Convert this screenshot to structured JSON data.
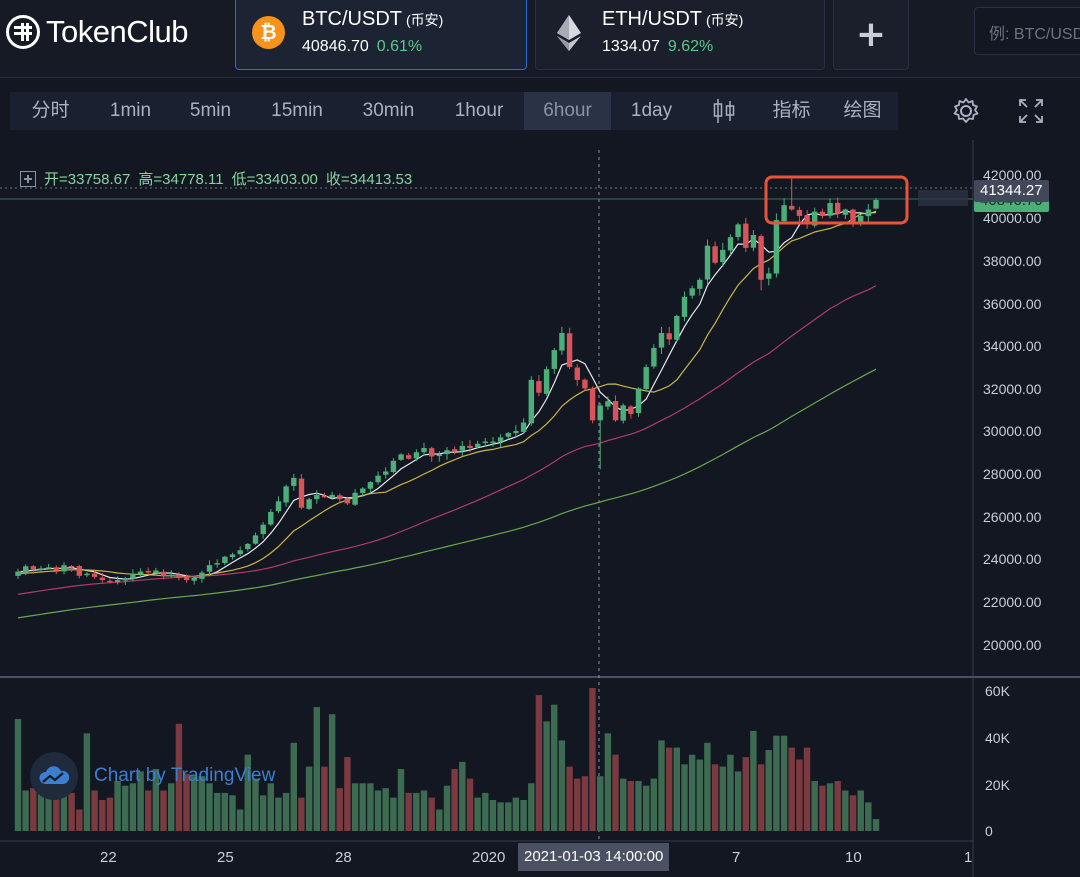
{
  "app": {
    "logo_text": "TokenClub"
  },
  "pairs": [
    {
      "symbol": "BTC/USDT",
      "exchange": "(币安)",
      "price": "40846.70",
      "change": "0.61%",
      "coin": "btc-icon",
      "active": true
    },
    {
      "symbol": "ETH/USDT",
      "exchange": "(币安)",
      "price": "1334.07",
      "change": "9.62%",
      "coin": "eth-icon",
      "active": false
    }
  ],
  "add_label": "+",
  "search": {
    "placeholder": "例: BTC/USDT"
  },
  "toolbar": {
    "timeframes": [
      "分时",
      "1min",
      "5min",
      "15min",
      "30min",
      "1hour",
      "6hour",
      "1day"
    ],
    "active_timeframe": "6hour",
    "indicators_label": "指标",
    "drawing_label": "绘图"
  },
  "ohlc": {
    "open_label": "开=",
    "open": "33758.67",
    "high_label": "高=",
    "high": "34778.11",
    "low_label": "低=",
    "low": "33403.00",
    "close_label": "收=",
    "close": "34413.53"
  },
  "price_axis": [
    "42000.00",
    "40000.00",
    "38000.00",
    "36000.00",
    "34000.00",
    "32000.00",
    "30000.00",
    "28000.00",
    "26000.00",
    "24000.00",
    "22000.00",
    "20000.00"
  ],
  "volume_axis": [
    "60K",
    "40K",
    "20K",
    "0"
  ],
  "date_axis": [
    "22",
    "25",
    "28",
    "2020",
    "7",
    "10",
    "1"
  ],
  "crosshair_time": "2021-01-03 14:00:00",
  "last_price_tag": "41344.27",
  "current_price_tag": "40846.70",
  "watermark": "Chart by TradingView",
  "colors": {
    "up": "#4caf7a",
    "down": "#d9545a",
    "accent": "#2e6bd0",
    "highlight_box": "#e8533a"
  },
  "chart_data": {
    "type": "candlestick",
    "interval": "6hour",
    "price_range": [
      19000,
      42500
    ],
    "volume_range": [
      0,
      65000
    ],
    "moving_averages": [
      "MA white",
      "MA yellow",
      "MA magenta",
      "MA green"
    ],
    "closes": [
      23400,
      23650,
      23500,
      23550,
      23600,
      23450,
      23700,
      23600,
      23200,
      23300,
      23150,
      23000,
      22950,
      23000,
      23100,
      23300,
      23400,
      23350,
      23450,
      23200,
      23250,
      23100,
      23000,
      23100,
      23350,
      23700,
      23800,
      24100,
      24200,
      24400,
      24700,
      25100,
      25600,
      26200,
      26700,
      27400,
      27800,
      26400,
      26800,
      27000,
      26900,
      27000,
      26800,
      26600,
      27100,
      27300,
      27600,
      27900,
      28100,
      28600,
      28900,
      28700,
      29000,
      29200,
      28800,
      28900,
      29100,
      29050,
      29300,
      29200,
      29400,
      29500,
      29500,
      29700,
      29900,
      30000,
      30400,
      32400,
      31800,
      32900,
      33800,
      34600,
      33000,
      32400,
      32000,
      30500,
      31200,
      31400,
      30500,
      31200,
      30800,
      32000,
      33000,
      33900,
      34600,
      34300,
      35400,
      36300,
      36700,
      37100,
      38700,
      37900,
      38500,
      39100,
      39700,
      38600,
      39200,
      37100,
      37400,
      39900,
      40600,
      40400,
      40100,
      39700,
      40300,
      40100,
      40700,
      40200,
      40400,
      39800,
      40100,
      40400,
      40847
    ],
    "volumes": [
      47000,
      17000,
      18000,
      16000,
      15000,
      28000,
      18000,
      16000,
      9000,
      41000,
      17000,
      13000,
      14000,
      21000,
      19000,
      20000,
      25000,
      17000,
      26000,
      17000,
      20000,
      45000,
      24000,
      23000,
      23000,
      20000,
      16000,
      16000,
      15000,
      9000,
      32000,
      22000,
      15000,
      20000,
      14000,
      16000,
      37000,
      14000,
      27000,
      52000,
      27000,
      49000,
      18000,
      31000,
      20000,
      20000,
      20000,
      17000,
      18000,
      14000,
      26000,
      16000,
      16000,
      17000,
      14000,
      9000,
      19000,
      26000,
      29000,
      22000,
      14000,
      16000,
      13000,
      12000,
      12000,
      14000,
      13000,
      20000,
      57000,
      46000,
      53000,
      38000,
      27000,
      22000,
      23000,
      60000,
      23000,
      41000,
      32000,
      22000,
      21000,
      21000,
      19000,
      22000,
      38000,
      35000,
      35000,
      28000,
      32000,
      30000,
      37000,
      28000,
      27000,
      32000,
      25000,
      31000,
      42000,
      28000,
      34000,
      40000,
      40000,
      35000,
      30000,
      35000,
      21000,
      19000,
      20000,
      21000,
      17000,
      15000,
      17000,
      12000,
      5000
    ]
  }
}
